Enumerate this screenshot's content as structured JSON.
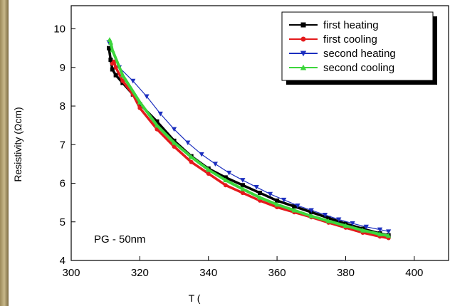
{
  "chart_data": {
    "type": "line",
    "xlabel": "T (",
    "ylabel": "Resistivity (Ωcm)",
    "xlim": [
      300,
      410
    ],
    "ylim": [
      4,
      10.6
    ],
    "x_ticks": [
      300,
      320,
      340,
      360,
      380,
      400
    ],
    "y_ticks": [
      4,
      5,
      6,
      7,
      8,
      9,
      10
    ],
    "grid": false,
    "legend_position": "top-right",
    "annotation": "PG - 50nm",
    "series": [
      {
        "name": "first heating",
        "color": "#000000",
        "marker": "square",
        "x": [
          311,
          311.5,
          312,
          313,
          315,
          318,
          320,
          325,
          330,
          335,
          340,
          345,
          350,
          355,
          360,
          365,
          370,
          375,
          380,
          385,
          390,
          392.5
        ],
        "y": [
          9.5,
          9.2,
          8.95,
          8.8,
          8.6,
          8.3,
          8.05,
          7.6,
          7.1,
          6.7,
          6.38,
          6.15,
          5.95,
          5.75,
          5.55,
          5.4,
          5.25,
          5.1,
          4.95,
          4.82,
          4.7,
          4.65
        ]
      },
      {
        "name": "first cooling",
        "color": "#e41a1c",
        "marker": "circle",
        "x": [
          392.5,
          390,
          385,
          380,
          375,
          370,
          365,
          360,
          355,
          350,
          345,
          340,
          335,
          330,
          325,
          320,
          318,
          315,
          313,
          312.5,
          312
        ],
        "y": [
          4.58,
          4.62,
          4.72,
          4.85,
          4.98,
          5.12,
          5.25,
          5.38,
          5.55,
          5.75,
          5.95,
          6.25,
          6.55,
          6.95,
          7.4,
          7.95,
          8.3,
          8.65,
          9.0,
          9.15,
          9.1
        ]
      },
      {
        "name": "second heating",
        "color": "#1c2fbf",
        "marker": "triangle-down",
        "x": [
          311,
          314,
          318,
          322,
          326,
          330,
          334,
          338,
          342,
          346,
          350,
          354,
          358,
          362,
          366,
          370,
          374,
          378,
          382,
          386,
          390,
          392.5
        ],
        "y": [
          9.65,
          9.0,
          8.65,
          8.25,
          7.8,
          7.4,
          7.05,
          6.75,
          6.5,
          6.27,
          6.08,
          5.9,
          5.72,
          5.57,
          5.42,
          5.3,
          5.18,
          5.06,
          4.96,
          4.87,
          4.8,
          4.75
        ]
      },
      {
        "name": "second cooling",
        "color": "#3cd63c",
        "marker": "triangle-up",
        "x": [
          392.5,
          390,
          385,
          380,
          375,
          370,
          365,
          360,
          355,
          350,
          345,
          340,
          335,
          330,
          325,
          320,
          315,
          312,
          311.5,
          311.2
        ],
        "y": [
          4.64,
          4.68,
          4.78,
          4.9,
          5.02,
          5.15,
          5.3,
          5.45,
          5.63,
          5.85,
          6.08,
          6.35,
          6.68,
          7.05,
          7.5,
          8.1,
          8.8,
          9.45,
          9.65,
          9.72
        ]
      }
    ]
  }
}
